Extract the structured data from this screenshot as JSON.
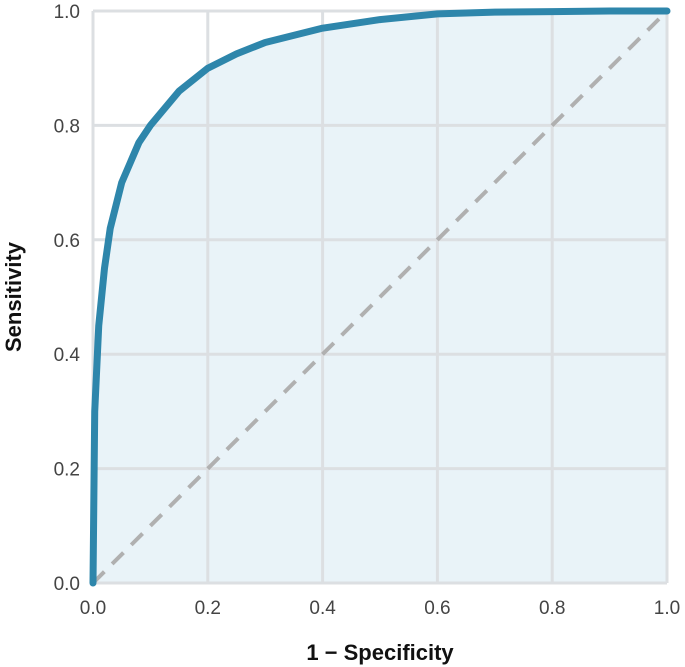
{
  "chart_data": {
    "type": "line",
    "title": "",
    "xlabel": "1 − Specificity",
    "ylabel": "Sensitivity",
    "xlim": [
      0,
      1
    ],
    "ylim": [
      0,
      1
    ],
    "x_ticks": [
      "0.0",
      "0.2",
      "0.4",
      "0.6",
      "0.8",
      "1.0"
    ],
    "y_ticks": [
      "0.0",
      "0.2",
      "0.4",
      "0.6",
      "0.8",
      "1.0"
    ],
    "grid": true,
    "legend": "none",
    "series": [
      {
        "role": "roc-curve",
        "color": "#2e86ab",
        "fill_under": true,
        "fill_color": "#e9f3f8",
        "x": [
          0.0,
          0.003,
          0.01,
          0.02,
          0.03,
          0.05,
          0.08,
          0.1,
          0.15,
          0.2,
          0.25,
          0.3,
          0.4,
          0.5,
          0.6,
          0.7,
          0.8,
          0.9,
          1.0
        ],
        "y": [
          0.0,
          0.3,
          0.45,
          0.55,
          0.62,
          0.7,
          0.77,
          0.8,
          0.86,
          0.9,
          0.925,
          0.945,
          0.97,
          0.985,
          0.995,
          0.998,
          0.999,
          1.0,
          1.0
        ]
      },
      {
        "role": "chance-line",
        "color": "#b0b0b0",
        "style": "dashed",
        "x": [
          0,
          1
        ],
        "y": [
          0,
          1
        ]
      }
    ]
  }
}
